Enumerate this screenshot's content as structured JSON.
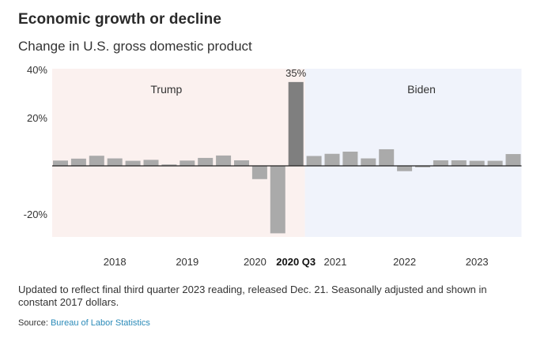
{
  "header": {
    "title": "Economic growth or decline",
    "subtitle": "Change in U.S. gross domestic product"
  },
  "footer": {
    "note": "Updated to reflect final third quarter 2023 reading, released Dec. 21. Seasonally adjusted and shown in constant 2017 dollars.",
    "source_prefix": "Source: ",
    "source_link": "Bureau of Labor Statistics"
  },
  "colors": {
    "bar": "#aaaaaa",
    "highlight_bar": "#7f7f7f",
    "trump_bg": "#fbf1ef",
    "biden_bg": "#f0f3fb",
    "baseline": "#222222",
    "link": "#2a8ab8"
  },
  "chart_data": {
    "type": "bar",
    "title": "Economic growth or decline",
    "subtitle": "Change in U.S. gross domestic product",
    "xlabel": "",
    "ylabel": "",
    "ylim": [
      -29,
      40
    ],
    "y_ticks": [
      {
        "value": 40,
        "label": "40%"
      },
      {
        "value": 20,
        "label": "20%"
      },
      {
        "value": -20,
        "label": "-20%"
      }
    ],
    "grid": false,
    "categories": [
      "2017 Q2",
      "2017 Q3",
      "2017 Q4",
      "2018 Q1",
      "2018 Q2",
      "2018 Q3",
      "2018 Q4",
      "2019 Q1",
      "2019 Q2",
      "2019 Q3",
      "2019 Q4",
      "2020 Q1",
      "2020 Q2",
      "2020 Q3",
      "2020 Q4",
      "2021 Q1",
      "2021 Q2",
      "2021 Q3",
      "2021 Q4",
      "2022 Q1",
      "2022 Q2",
      "2022 Q3",
      "2022 Q4",
      "2023 Q1",
      "2023 Q2",
      "2023 Q3"
    ],
    "values": [
      2.2,
      3.0,
      4.2,
      3.1,
      2.1,
      2.5,
      0.6,
      2.2,
      3.3,
      4.3,
      2.3,
      -5.5,
      -28.0,
      34.8,
      4.1,
      5.0,
      5.9,
      3.1,
      6.9,
      -2.2,
      -0.6,
      2.3,
      2.3,
      2.1,
      2.1,
      4.9
    ],
    "highlight_index": 13,
    "data_labels": [
      {
        "index": 13,
        "label": "35%"
      }
    ],
    "x_labels": [
      {
        "index": 3,
        "label": "2018",
        "bold": false
      },
      {
        "index": 7,
        "label": "2019",
        "bold": false
      },
      {
        "index": 11,
        "label": "2020",
        "bold": false
      },
      {
        "index": 13,
        "label": "2020 Q3",
        "bold": true
      },
      {
        "index": 15,
        "label": "2021",
        "bold": false
      },
      {
        "index": 19,
        "label": "2022",
        "bold": false
      },
      {
        "index": 23,
        "label": "2023",
        "bold": false
      }
    ],
    "eras": [
      {
        "name": "Trump",
        "start_index": 0,
        "end_index": 13
      },
      {
        "name": "Biden",
        "start_index": 14,
        "end_index": 25
      }
    ]
  }
}
